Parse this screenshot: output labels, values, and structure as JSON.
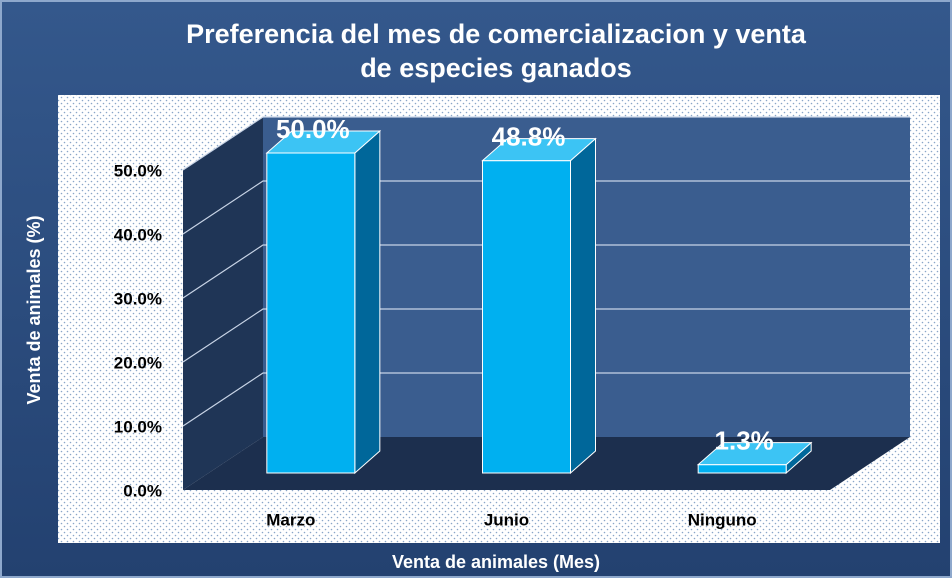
{
  "chart_data": {
    "type": "bar3d",
    "title": "Preferencia del mes de comercializacion y venta de especies ganados",
    "xlabel": "Venta de animales (Mes)",
    "ylabel": "Venta de animales (%)",
    "categories": [
      "Marzo",
      "Junio",
      "Ninguno"
    ],
    "values": [
      50.0,
      48.8,
      1.3
    ],
    "value_labels": [
      "50.0%",
      "48.8%",
      "1.3%"
    ],
    "color": "#00b0f0",
    "ylim": [
      0,
      50
    ],
    "yticks": [
      {
        "value": 0,
        "label": "0.0%"
      },
      {
        "value": 10,
        "label": "10.0%"
      },
      {
        "value": 20,
        "label": "20.0%"
      },
      {
        "value": 30,
        "label": "30.0%"
      },
      {
        "value": 40,
        "label": "40.0%"
      },
      {
        "value": 50,
        "label": "50.0%"
      }
    ],
    "grid": true
  }
}
